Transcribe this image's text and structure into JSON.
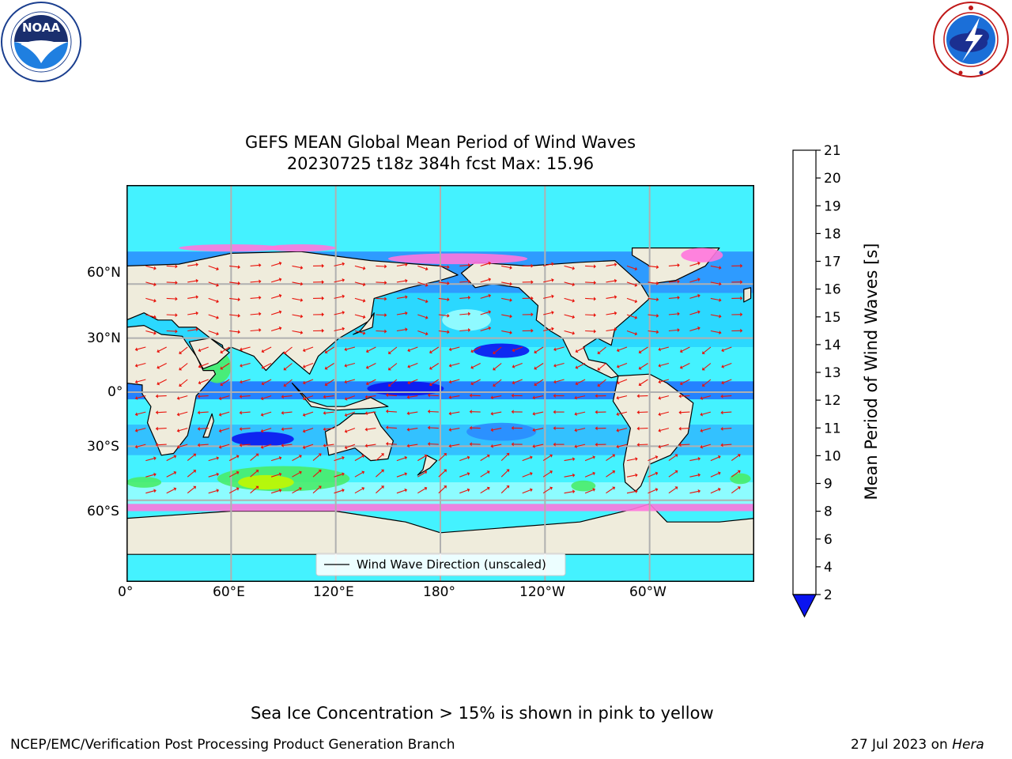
{
  "logos": {
    "noaa": {
      "text": "NOAA",
      "ring_text": "NATIONAL OCEANIC AND ATMOSPHERIC ADMINISTRATION · U.S. DEPARTMENT OF COMMERCE",
      "icon": "noaa-logo"
    },
    "nws": {
      "ring_text": "NATIONAL WEATHER SERVICE",
      "icon": "nws-logo"
    }
  },
  "title": {
    "line1": "GEFS MEAN Global Mean Period of Wind Waves",
    "line2": "20230725 t18z 384h fcst   Max: 15.96"
  },
  "map": {
    "lat_labels": [
      "60°N",
      "30°N",
      "0°",
      "30°S",
      "60°S"
    ],
    "lon_labels": [
      "0°",
      "60°E",
      "120°E",
      "180°",
      "120°W",
      "60°W"
    ],
    "legend": "Wind Wave Direction (unscaled)",
    "arrow_color": "#e8140c",
    "land_color": "#efecdc"
  },
  "colorbar": {
    "label": "Mean Period of Wind Waves [s]",
    "ticks": [
      "2",
      "4",
      "6",
      "8",
      "9",
      "10",
      "11",
      "12",
      "13",
      "14",
      "15",
      "16",
      "17",
      "18",
      "19",
      "20",
      "21"
    ],
    "colors": [
      "#0077ff",
      "#00e6ff",
      "#44f2ff",
      "#9afeff",
      "#49ec6a",
      "#00e600",
      "#5ded00",
      "#c1f700",
      "#d9f700",
      "#e6f400",
      "#f9f500",
      "#ffdf00",
      "#ffb400",
      "#ff8a00",
      "#ff5c00",
      "#ff2400"
    ],
    "under_color": "#0a14f0"
  },
  "caption": "Sea Ice Concentration > 15% is shown in pink to yellow",
  "footer": {
    "left": "NCEP/EMC/Verification Post Processing Product Generation Branch",
    "date": "27 Jul 2023 on ",
    "host": "Hera"
  }
}
